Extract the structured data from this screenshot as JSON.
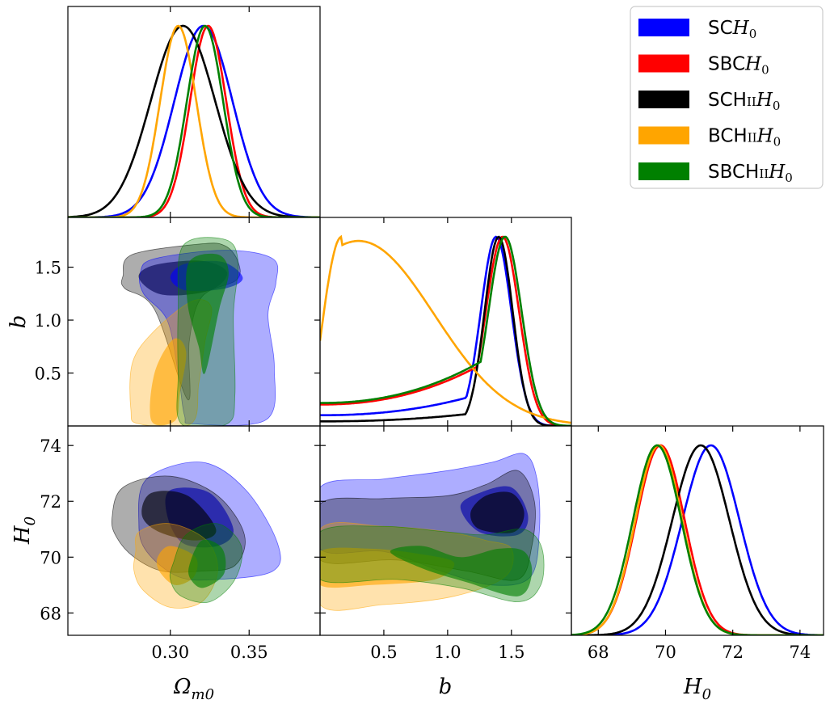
{
  "chart_data": {
    "type": "corner",
    "parameters": [
      {
        "key": "om",
        "label": "Ω",
        "label_sub": "m0",
        "range": [
          0.235,
          0.395
        ],
        "ticks": [
          0.3,
          0.35
        ],
        "tick_labels": [
          "0.30",
          "0.35"
        ]
      },
      {
        "key": "b",
        "label": "b",
        "label_sub": "",
        "range": [
          0.0,
          1.97
        ],
        "ticks": [
          0.5,
          1.0,
          1.5
        ],
        "tick_labels": [
          "0.5",
          "1.0",
          "1.5"
        ]
      },
      {
        "key": "h0",
        "label": "H",
        "label_sub": "0",
        "range": [
          67.2,
          74.7
        ],
        "ticks": [
          68,
          70,
          72,
          74
        ],
        "tick_labels": [
          "68",
          "70",
          "72",
          "74"
        ]
      }
    ],
    "series": [
      {
        "id": "SCH0",
        "color": "#0000ff",
        "legend": [
          "SC",
          "H",
          "0"
        ],
        "om": {
          "mean": 0.321,
          "sd": 0.0185
        },
        "h0": {
          "mean": 71.35,
          "sd": 0.85
        },
        "b_kind": "peak",
        "b_peak": 1.38,
        "b_sd": 0.12,
        "b_tail": 0.14
      },
      {
        "id": "SBCH0",
        "color": "#ff0000",
        "legend": [
          "SBC",
          "H",
          "0"
        ],
        "om": {
          "mean": 0.324,
          "sd": 0.0115
        },
        "h0": {
          "mean": 69.85,
          "sd": 0.72
        },
        "b_kind": "peak",
        "b_peak": 1.43,
        "b_sd": 0.13,
        "b_tail": 0.28
      },
      {
        "id": "SCHIIH0",
        "color": "#000000",
        "legend": [
          "SCH",
          "II",
          "H",
          "0"
        ],
        "om": {
          "mean": 0.308,
          "sd": 0.0205
        },
        "h0": {
          "mean": 71.05,
          "sd": 0.85
        },
        "b_kind": "peak",
        "b_peak": 1.4,
        "b_sd": 0.11,
        "b_tail": 0.06
      },
      {
        "id": "BCHIIH0",
        "color": "#ffa500",
        "legend": [
          "BCH",
          "II",
          "H",
          "0"
        ],
        "om": {
          "mean": 0.305,
          "sd": 0.0115
        },
        "h0": {
          "mean": 69.8,
          "sd": 0.7
        },
        "b_kind": "low",
        "b_peak": 0.17,
        "b_sd": 0.45,
        "b_tail": 0.0
      },
      {
        "id": "SBCHIIH0",
        "color": "#008000",
        "legend": [
          "SBCH",
          "II",
          "H",
          "0"
        ],
        "om": {
          "mean": 0.322,
          "sd": 0.0115
        },
        "h0": {
          "mean": 69.75,
          "sd": 0.72
        },
        "b_kind": "peak",
        "b_peak": 1.45,
        "b_sd": 0.13,
        "b_tail": 0.3
      }
    ],
    "contours": {
      "om_b": [
        {
          "series": "SCHIIH0",
          "outer_points": [
            [
              0.27,
              1.42
            ],
            [
              0.276,
              1.62
            ],
            [
              0.32,
              1.72
            ],
            [
              0.335,
              1.7
            ],
            [
              0.343,
              1.55
            ],
            [
              0.342,
              1.38
            ],
            [
              0.32,
              1.22
            ],
            [
              0.312,
              0.8
            ],
            [
              0.311,
              0.25
            ],
            [
              0.29,
              1.1
            ],
            [
              0.271,
              1.3
            ]
          ],
          "inner_points": [
            [
              0.28,
              1.4
            ],
            [
              0.29,
              1.52
            ],
            [
              0.32,
              1.56
            ],
            [
              0.336,
              1.45
            ],
            [
              0.325,
              1.28
            ],
            [
              0.295,
              1.24
            ]
          ]
        },
        {
          "series": "SCH0",
          "outer_points": [
            [
              0.281,
              1.45
            ],
            [
              0.29,
              1.58
            ],
            [
              0.335,
              1.66
            ],
            [
              0.365,
              1.58
            ],
            [
              0.367,
              1.35
            ],
            [
              0.362,
              1.05
            ],
            [
              0.366,
              0.55
            ],
            [
              0.361,
              0.06
            ],
            [
              0.315,
              0.02
            ],
            [
              0.309,
              0.1
            ],
            [
              0.305,
              0.5
            ],
            [
              0.298,
              1.0
            ],
            [
              0.283,
              1.25
            ]
          ],
          "inner_points": [
            [
              0.3,
              1.4
            ],
            [
              0.309,
              1.53
            ],
            [
              0.333,
              1.55
            ],
            [
              0.346,
              1.4
            ],
            [
              0.335,
              1.3
            ],
            [
              0.31,
              1.28
            ]
          ]
        },
        {
          "series": "BCHIIH0",
          "outer_points": [
            [
              0.275,
              0.15
            ],
            [
              0.276,
              0.6
            ],
            [
              0.29,
              0.9
            ],
            [
              0.314,
              1.18
            ],
            [
              0.326,
              1.12
            ],
            [
              0.322,
              0.8
            ],
            [
              0.318,
              0.4
            ],
            [
              0.313,
              0.02
            ],
            [
              0.28,
              0.02
            ]
          ],
          "inner_points": [
            [
              0.288,
              0.05
            ],
            [
              0.29,
              0.5
            ],
            [
              0.302,
              0.82
            ],
            [
              0.31,
              0.7
            ],
            [
              0.306,
              0.3
            ],
            [
              0.303,
              0.05
            ]
          ]
        },
        {
          "series": "SBCHIIH0",
          "outer_points": [
            [
              0.305,
              1.1
            ],
            [
              0.308,
              1.7
            ],
            [
              0.335,
              1.76
            ],
            [
              0.343,
              1.55
            ],
            [
              0.34,
              1.05
            ],
            [
              0.341,
              0.3
            ],
            [
              0.336,
              0.02
            ],
            [
              0.307,
              0.02
            ],
            [
              0.305,
              0.5
            ]
          ],
          "inner_points": [
            [
              0.311,
              1.15
            ],
            [
              0.312,
              1.55
            ],
            [
              0.33,
              1.62
            ],
            [
              0.337,
              1.45
            ],
            [
              0.331,
              1.1
            ],
            [
              0.322,
              0.5
            ],
            [
              0.318,
              0.75
            ]
          ]
        }
      ],
      "om_h0": [
        {
          "series": "SCH0",
          "outer_points": [
            [
              0.28,
              71.2
            ],
            [
              0.285,
              72.8
            ],
            [
              0.32,
              73.4
            ],
            [
              0.348,
              72.4
            ],
            [
              0.368,
              70.5
            ],
            [
              0.365,
              69.5
            ],
            [
              0.33,
              69.2
            ],
            [
              0.305,
              69.3
            ],
            [
              0.285,
              70.2
            ]
          ],
          "inner_points": [
            [
              0.298,
              71.5
            ],
            [
              0.3,
              72.4
            ],
            [
              0.325,
              72.3
            ],
            [
              0.34,
              71.0
            ],
            [
              0.33,
              70.4
            ],
            [
              0.308,
              70.5
            ]
          ]
        },
        {
          "series": "SCHIIH0",
          "outer_points": [
            [
              0.263,
              71.4
            ],
            [
              0.27,
              72.5
            ],
            [
              0.3,
              72.9
            ],
            [
              0.33,
              72.2
            ],
            [
              0.347,
              70.8
            ],
            [
              0.341,
              69.7
            ],
            [
              0.32,
              69.5
            ],
            [
              0.295,
              69.5
            ],
            [
              0.277,
              70.0
            ],
            [
              0.266,
              70.7
            ]
          ],
          "inner_points": [
            [
              0.282,
              71.5
            ],
            [
              0.288,
              72.3
            ],
            [
              0.311,
              72.2
            ],
            [
              0.329,
              71.0
            ],
            [
              0.317,
              70.6
            ],
            [
              0.293,
              70.9
            ]
          ]
        },
        {
          "series": "BCHIIH0",
          "outer_points": [
            [
              0.278,
              70.2
            ],
            [
              0.28,
              70.9
            ],
            [
              0.3,
              71.2
            ],
            [
              0.323,
              70.6
            ],
            [
              0.33,
              69.5
            ],
            [
              0.32,
              68.4
            ],
            [
              0.3,
              68.2
            ],
            [
              0.283,
              68.8
            ],
            [
              0.277,
              69.5
            ]
          ],
          "inner_points": [
            [
              0.292,
              70.0
            ],
            [
              0.3,
              70.4
            ],
            [
              0.316,
              70.0
            ],
            [
              0.315,
              69.3
            ],
            [
              0.303,
              69.0
            ],
            [
              0.293,
              69.5
            ]
          ]
        },
        {
          "series": "SBCHIIH0",
          "outer_points": [
            [
              0.302,
              69.8
            ],
            [
              0.31,
              70.8
            ],
            [
              0.33,
              71.2
            ],
            [
              0.345,
              70.4
            ],
            [
              0.341,
              69.2
            ],
            [
              0.325,
              68.4
            ],
            [
              0.307,
              68.6
            ],
            [
              0.3,
              69.2
            ]
          ],
          "inner_points": [
            [
              0.312,
              69.7
            ],
            [
              0.32,
              70.6
            ],
            [
              0.333,
              70.3
            ],
            [
              0.334,
              69.4
            ],
            [
              0.321,
              68.9
            ],
            [
              0.313,
              69.2
            ]
          ]
        }
      ],
      "b_h0": [
        {
          "series": "SCH0",
          "outer_points": [
            [
              0.0,
              72.5
            ],
            [
              0.5,
              72.8
            ],
            [
              1.0,
              73.1
            ],
            [
              1.35,
              73.4
            ],
            [
              1.6,
              73.7
            ],
            [
              1.7,
              72.8
            ],
            [
              1.72,
              71.0
            ],
            [
              1.65,
              69.3
            ],
            [
              1.35,
              69.0
            ],
            [
              0.95,
              69.5
            ],
            [
              0.5,
              70.2
            ],
            [
              0.0,
              70.3
            ]
          ],
          "inner_points": [
            [
              1.1,
              71.8
            ],
            [
              1.25,
              72.3
            ],
            [
              1.5,
              72.5
            ],
            [
              1.63,
              71.5
            ],
            [
              1.55,
              70.8
            ],
            [
              1.25,
              70.9
            ]
          ]
        },
        {
          "series": "SCHIIH0",
          "outer_points": [
            [
              0.0,
              71.9
            ],
            [
              0.5,
              72.1
            ],
            [
              1.0,
              72.2
            ],
            [
              1.3,
              72.6
            ],
            [
              1.55,
              73.1
            ],
            [
              1.68,
              72.0
            ],
            [
              1.66,
              70.4
            ],
            [
              1.55,
              69.2
            ],
            [
              1.15,
              69.5
            ],
            [
              0.6,
              69.9
            ],
            [
              0.0,
              69.9
            ]
          ],
          "inner_points": [
            [
              1.18,
              71.6
            ],
            [
              1.3,
              72.2
            ],
            [
              1.5,
              72.3
            ],
            [
              1.6,
              71.6
            ],
            [
              1.52,
              70.9
            ],
            [
              1.25,
              71.0
            ]
          ]
        },
        {
          "series": "BCHIIH0",
          "outer_points": [
            [
              0.0,
              71.0
            ],
            [
              0.5,
              71.1
            ],
            [
              1.0,
              70.9
            ],
            [
              1.3,
              70.6
            ],
            [
              1.5,
              70.3
            ],
            [
              1.45,
              69.3
            ],
            [
              1.05,
              68.6
            ],
            [
              0.5,
              68.3
            ],
            [
              0.0,
              68.3
            ]
          ],
          "inner_points": [
            [
              0.0,
              70.2
            ],
            [
              0.4,
              70.3
            ],
            [
              0.8,
              70.1
            ],
            [
              1.05,
              69.8
            ],
            [
              0.9,
              69.2
            ],
            [
              0.4,
              69.0
            ],
            [
              0.0,
              69.0
            ]
          ]
        },
        {
          "series": "SBCHIIH0",
          "outer_points": [
            [
              0.0,
              70.9
            ],
            [
              0.5,
              71.1
            ],
            [
              1.0,
              70.9
            ],
            [
              1.3,
              70.8
            ],
            [
              1.6,
              71.0
            ],
            [
              1.74,
              70.3
            ],
            [
              1.73,
              69.0
            ],
            [
              1.55,
              68.4
            ],
            [
              1.1,
              68.9
            ],
            [
              0.6,
              69.2
            ],
            [
              0.0,
              69.2
            ]
          ],
          "inner_points": [
            [
              0.55,
              70.2
            ],
            [
              0.8,
              70.4
            ],
            [
              1.1,
              70.0
            ],
            [
              1.4,
              70.3
            ],
            [
              1.6,
              70.2
            ],
            [
              1.66,
              69.4
            ],
            [
              1.55,
              68.6
            ],
            [
              1.15,
              69.1
            ],
            [
              0.8,
              69.6
            ]
          ]
        }
      ]
    },
    "legend_position": "top-right"
  }
}
